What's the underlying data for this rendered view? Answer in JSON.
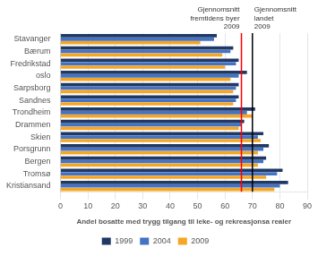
{
  "chart_data": {
    "type": "bar",
    "orientation": "horizontal",
    "categories": [
      "Kristiansand",
      "Tromsø",
      "Bergen",
      "Porsgrunn",
      "Skien",
      "Drammen",
      "Trondheim",
      "Sandnes",
      "Sarpsborg",
      "oslo",
      "Fredrikstad",
      "Bærum",
      "Stavanger"
    ],
    "series": [
      {
        "name": "1999",
        "color": "#1F3864",
        "values": [
          83,
          81,
          75,
          76,
          74,
          67,
          71,
          65,
          65,
          68,
          65,
          63,
          57
        ]
      },
      {
        "name": "2004",
        "color": "#4472C4",
        "values": [
          80,
          79,
          74,
          74,
          72,
          66,
          68,
          64,
          64,
          65,
          64,
          62,
          56
        ]
      },
      {
        "name": "2009",
        "color": "#F5A623",
        "values": [
          78,
          75,
          72,
          72,
          73,
          65,
          70,
          63,
          63,
          62,
          60,
          59,
          51
        ]
      }
    ],
    "xlabel": "Andel bosatte med trygg tilgang til leke- og rekreasjonsa realer",
    "xlim": [
      0,
      90
    ],
    "xticks": [
      0,
      10,
      20,
      30,
      40,
      50,
      60,
      70,
      80,
      90
    ],
    "grid": true,
    "legend": "bottom",
    "annotations": [
      {
        "x": 66,
        "text": "Gjennomsnitt\nfremtidens byer\n2009",
        "color": "red"
      },
      {
        "x": 70,
        "text": "Gjennomsnitt\nlandet\n2009",
        "color": "black"
      }
    ]
  }
}
